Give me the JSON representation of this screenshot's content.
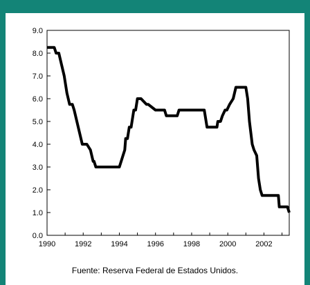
{
  "caption": "Fuente: Reserva Federal de Estados Unidos.",
  "colors": {
    "frame": "#138477",
    "line": "#000000",
    "background": "#ffffff"
  },
  "chart_data": {
    "type": "line",
    "title": "",
    "xlabel": "",
    "ylabel": "",
    "xlim": [
      1990,
      2003.4
    ],
    "ylim": [
      0,
      9
    ],
    "x_ticks": [
      1990,
      1992,
      1994,
      1996,
      1998,
      2000,
      2002
    ],
    "x_tick_labels": [
      "1990",
      "1992",
      "1994",
      "1996",
      "1998",
      "2000",
      "2002"
    ],
    "y_ticks": [
      0,
      1,
      2,
      3,
      4,
      5,
      6,
      7,
      8,
      9
    ],
    "y_tick_labels": [
      "0.0",
      "1.0",
      "2.0",
      "3.0",
      "4.0",
      "5.0",
      "6.0",
      "7.0",
      "8.0",
      "9.0"
    ],
    "grid": false,
    "legend": "none",
    "series": [
      {
        "x": [
          1990.0,
          1990.4,
          1990.5,
          1990.65,
          1990.8,
          1990.95,
          1991.0,
          1991.1,
          1991.25,
          1991.4,
          1991.5,
          1991.65,
          1991.8,
          1991.95,
          1992.0,
          1992.2,
          1992.4,
          1992.55,
          1992.6,
          1992.7,
          1992.8,
          1994.0,
          1994.1,
          1994.2,
          1994.3,
          1994.35,
          1994.45,
          1994.55,
          1994.65,
          1994.8,
          1994.9,
          1995.0,
          1995.2,
          1995.5,
          1995.6,
          1996.0,
          1996.05,
          1996.5,
          1996.6,
          1997.2,
          1997.3,
          1998.7,
          1998.85,
          1999.4,
          1999.45,
          1999.6,
          1999.7,
          1999.85,
          1999.95,
          2000.1,
          2000.3,
          2000.45,
          2001.0,
          2001.1,
          2001.2,
          2001.35,
          2001.45,
          2001.6,
          2001.7,
          2001.8,
          2001.9,
          2002.0,
          2002.8,
          2002.85,
          2003.3,
          2003.4
        ],
        "y": [
          8.25,
          8.25,
          8.0,
          8.0,
          7.5,
          7.0,
          6.75,
          6.25,
          5.75,
          5.75,
          5.5,
          5.0,
          4.5,
          4.0,
          4.0,
          4.0,
          3.75,
          3.25,
          3.25,
          3.0,
          3.0,
          3.0,
          3.25,
          3.5,
          3.75,
          4.25,
          4.25,
          4.75,
          4.75,
          5.5,
          5.5,
          6.0,
          6.0,
          5.75,
          5.75,
          5.5,
          5.5,
          5.5,
          5.25,
          5.25,
          5.5,
          5.5,
          4.75,
          4.75,
          5.0,
          5.0,
          5.25,
          5.5,
          5.5,
          5.75,
          6.0,
          6.5,
          6.5,
          6.0,
          5.0,
          4.0,
          3.75,
          3.5,
          2.5,
          2.0,
          1.75,
          1.75,
          1.75,
          1.25,
          1.25,
          1.0
        ]
      }
    ]
  }
}
